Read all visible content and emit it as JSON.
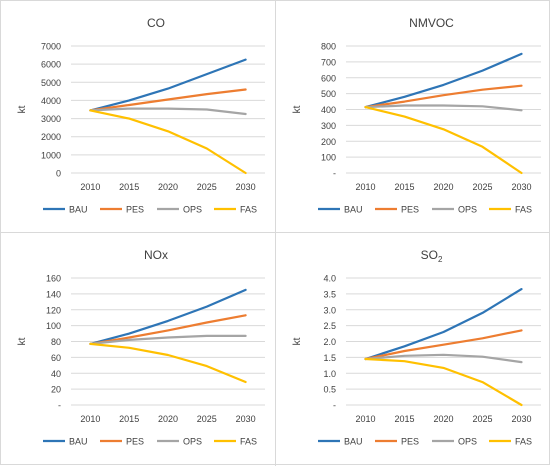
{
  "colors": {
    "BAU": "#2e75b6",
    "PES": "#ed7d31",
    "OPS": "#a5a5a5",
    "FAS": "#ffc000",
    "gridline": "#d9d9d9",
    "text": "#404040"
  },
  "chart_data": [
    {
      "type": "line",
      "title": "CO",
      "title_sub": "",
      "ylabel": "kt",
      "xlabel": "",
      "categories": [
        "2010",
        "2015",
        "2020",
        "2025",
        "2030"
      ],
      "ylim": [
        0,
        7000
      ],
      "yticks": [
        0,
        1000,
        2000,
        3000,
        4000,
        5000,
        6000,
        7000
      ],
      "ytick_labels": [
        "0",
        "1000",
        "2000",
        "3000",
        "4000",
        "5000",
        "6000",
        "7000"
      ],
      "legend": "bottom",
      "series": [
        {
          "name": "BAU",
          "values": [
            3450,
            4000,
            4650,
            5450,
            6250
          ]
        },
        {
          "name": "PES",
          "values": [
            3450,
            3750,
            4050,
            4350,
            4600
          ]
        },
        {
          "name": "OPS",
          "values": [
            3450,
            3550,
            3550,
            3500,
            3250
          ]
        },
        {
          "name": "FAS",
          "values": [
            3450,
            3000,
            2300,
            1350,
            0
          ]
        }
      ]
    },
    {
      "type": "line",
      "title": "NMVOC",
      "title_sub": "",
      "ylabel": "kt",
      "xlabel": "",
      "categories": [
        "2010",
        "2015",
        "2020",
        "2025",
        "2030"
      ],
      "ylim": [
        0,
        800
      ],
      "yticks": [
        0,
        100,
        200,
        300,
        400,
        500,
        600,
        700,
        800
      ],
      "ytick_labels": [
        "-",
        "100",
        "200",
        "300",
        "400",
        "500",
        "600",
        "700",
        "800"
      ],
      "legend": "bottom",
      "series": [
        {
          "name": "BAU",
          "values": [
            415,
            480,
            555,
            645,
            750
          ]
        },
        {
          "name": "PES",
          "values": [
            415,
            450,
            490,
            525,
            550
          ]
        },
        {
          "name": "OPS",
          "values": [
            415,
            425,
            425,
            420,
            395
          ]
        },
        {
          "name": "FAS",
          "values": [
            415,
            355,
            275,
            165,
            0
          ]
        }
      ]
    },
    {
      "type": "line",
      "title": "NOx",
      "title_sub": "",
      "ylabel": "kt",
      "xlabel": "",
      "categories": [
        "2010",
        "2015",
        "2020",
        "2025",
        "2030"
      ],
      "ylim": [
        0,
        160
      ],
      "yticks": [
        0,
        20,
        40,
        60,
        80,
        100,
        120,
        140,
        160
      ],
      "ytick_labels": [
        "-",
        "20",
        "40",
        "60",
        "80",
        "100",
        "120",
        "140",
        "160"
      ],
      "legend": "bottom",
      "series": [
        {
          "name": "BAU",
          "values": [
            77,
            90,
            106,
            124,
            145
          ]
        },
        {
          "name": "PES",
          "values": [
            77,
            85,
            94,
            104,
            113
          ]
        },
        {
          "name": "OPS",
          "values": [
            77,
            82,
            85,
            87,
            87
          ]
        },
        {
          "name": "FAS",
          "values": [
            77,
            72,
            63,
            49,
            29
          ]
        }
      ]
    },
    {
      "type": "line",
      "title": "SO",
      "title_sub": "2",
      "ylabel": "kt",
      "xlabel": "",
      "categories": [
        "2010",
        "2015",
        "2020",
        "2025",
        "2030"
      ],
      "ylim": [
        0,
        4
      ],
      "yticks": [
        0,
        0.5,
        1,
        1.5,
        2,
        2.5,
        3,
        3.5,
        4
      ],
      "ytick_labels": [
        "-",
        "0.5",
        "1.0",
        "1.5",
        "2.0",
        "2.5",
        "3.0",
        "3.5",
        "4.0"
      ],
      "legend": "bottom",
      "series": [
        {
          "name": "BAU",
          "values": [
            1.45,
            1.85,
            2.3,
            2.9,
            3.65
          ]
        },
        {
          "name": "PES",
          "values": [
            1.45,
            1.7,
            1.9,
            2.1,
            2.35
          ]
        },
        {
          "name": "OPS",
          "values": [
            1.45,
            1.55,
            1.58,
            1.52,
            1.35
          ]
        },
        {
          "name": "FAS",
          "values": [
            1.45,
            1.38,
            1.17,
            0.72,
            0
          ]
        }
      ]
    }
  ]
}
